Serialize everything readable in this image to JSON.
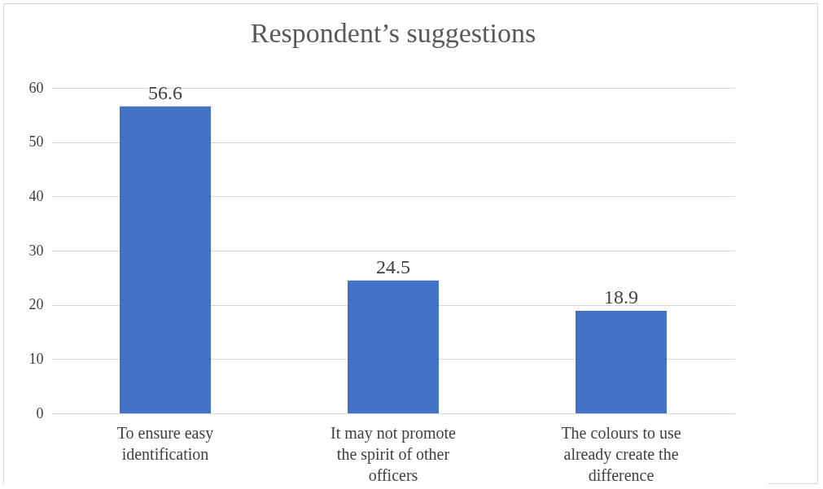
{
  "chart_data": {
    "type": "bar",
    "title": "Respondent’s suggestions",
    "categories": [
      "To ensure easy identification",
      "It may not promote the spirit of other officers",
      "The colours to use already create the difference"
    ],
    "values": [
      56.6,
      24.5,
      18.9
    ],
    "color": "#4472c4",
    "ylim": [
      0,
      60
    ],
    "yticks": [
      0,
      10,
      20,
      30,
      40,
      50,
      60
    ],
    "grid": true,
    "data_labels": true
  }
}
